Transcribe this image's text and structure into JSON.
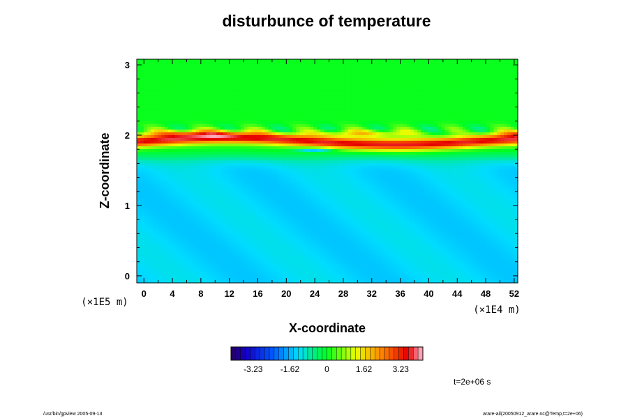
{
  "chart_data": {
    "type": "heatmap",
    "title": "disturbunce of temperature",
    "xlabel": "X-coordinate",
    "ylabel": "Z-coordinate",
    "x_unit": "(×1E4 m)",
    "y_unit": "(×1E5 m)",
    "xlim": [
      -1,
      52.5
    ],
    "ylim": [
      -0.1,
      3.08
    ],
    "x_ticks": [
      0,
      4,
      8,
      12,
      16,
      20,
      24,
      28,
      32,
      36,
      40,
      44,
      48,
      52
    ],
    "y_ticks": [
      0,
      1,
      2,
      3
    ],
    "x_minor_step": 2,
    "y_minor_step": 0.2,
    "colorbar": {
      "min": -4.2,
      "max": 4.2,
      "levels": 40,
      "ticks": [
        -3.23,
        -1.62,
        0,
        1.62,
        3.23
      ],
      "tick_labels": [
        "-3.23",
        "-1.62",
        "0",
        "1.62",
        "3.23"
      ]
    },
    "field_description": {
      "upper_region": {
        "z_range": [
          2.3,
          3.08
        ],
        "value": 0.05
      },
      "warm_layer": {
        "z_center": 1.92,
        "z_halfwidth": 0.08,
        "peak_value": 3.6
      },
      "cool_lower_region": {
        "z_range": [
          -0.1,
          1.6
        ],
        "value": -1.3
      }
    },
    "annotation_time": "t=2e+06 s"
  },
  "footer": {
    "left": "/usr/bin/gpview 2005-09-13",
    "right": "arare-ail(20050912_arare.nc@Temp,t=2e+06)"
  },
  "colors": {
    "background": "#ffffff",
    "frame": "#000000",
    "text": "#000000"
  }
}
